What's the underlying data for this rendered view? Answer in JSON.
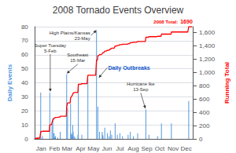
{
  "chart_data": {
    "type": "bar",
    "title": "2008 Tornado Events Overview",
    "categories": [
      null,
      null,
      null,
      null,
      null,
      null,
      null,
      null,
      null,
      null,
      null,
      null,
      null,
      null,
      null,
      "Jan",
      null,
      null,
      null,
      null,
      null,
      null,
      null,
      null,
      null,
      null,
      null,
      null,
      null,
      null,
      null,
      null,
      null,
      null,
      null,
      null,
      null,
      null,
      null,
      null,
      null,
      null,
      null,
      null,
      null,
      null,
      "Feb",
      null,
      null,
      null,
      null,
      null,
      null,
      null,
      null,
      null,
      null,
      null,
      null,
      null,
      null,
      null,
      null,
      null,
      null,
      null,
      null,
      null,
      null,
      null,
      null,
      null,
      null,
      null,
      null,
      "Mar",
      null,
      null,
      null,
      null,
      null,
      null,
      null,
      null,
      null,
      null,
      null,
      null,
      null,
      null,
      null,
      null,
      null,
      null,
      null,
      null,
      null,
      null,
      null,
      null,
      null,
      null,
      null,
      null,
      null,
      null,
      "Apr",
      null,
      null,
      null,
      null,
      null,
      null,
      null,
      null,
      null,
      null,
      null,
      null,
      null,
      null,
      null,
      null,
      null,
      null,
      null,
      null,
      null,
      null,
      null,
      null,
      null,
      null,
      null,
      null,
      null,
      "May",
      null,
      null,
      null,
      null,
      null,
      null,
      null,
      null,
      null,
      null,
      null,
      null,
      null,
      null,
      null,
      null,
      null,
      null,
      null,
      null,
      null,
      null,
      null,
      null,
      null,
      null,
      null,
      null,
      null,
      null,
      "Jun",
      null,
      null,
      null,
      null,
      null,
      null,
      null,
      null,
      null,
      null,
      null,
      null,
      null,
      null,
      null,
      null,
      null,
      null,
      null,
      null,
      null,
      null,
      null,
      null,
      null,
      null,
      null,
      null,
      null,
      "Jul",
      null,
      null,
      null,
      null,
      null,
      null,
      null,
      null,
      null,
      null,
      null,
      null,
      null,
      null,
      null,
      null,
      null,
      null,
      null,
      null,
      null,
      null,
      null,
      null,
      null,
      null,
      null,
      null,
      null,
      null,
      "Aug",
      null,
      null,
      null,
      null,
      null,
      null,
      null,
      null,
      null,
      null,
      null,
      null,
      null,
      null,
      null,
      null,
      null,
      null,
      null,
      null,
      null,
      null,
      null,
      null,
      null,
      null,
      null,
      null,
      null,
      null,
      "Sep",
      null,
      null,
      null,
      null,
      null,
      null,
      null,
      null,
      null,
      null,
      null,
      null,
      null,
      null,
      null,
      null,
      null,
      null,
      null,
      null,
      null,
      null,
      null,
      null,
      null,
      null,
      null,
      null,
      null,
      "Oct",
      null,
      null,
      null,
      null,
      null,
      null,
      null,
      null,
      null,
      null,
      null,
      null,
      null,
      null,
      null,
      null,
      null,
      null,
      null,
      null,
      null,
      null,
      null,
      null,
      null,
      null,
      null,
      null,
      null,
      null,
      "Nov",
      null,
      null,
      null,
      null,
      null,
      null,
      null,
      null,
      null,
      null,
      null,
      null,
      null,
      null,
      null,
      null,
      null,
      null,
      null,
      null,
      null,
      null,
      null,
      null,
      null,
      null,
      null,
      null,
      null,
      "Dec",
      null,
      null,
      null,
      null,
      null,
      null,
      null,
      null,
      null,
      null,
      null,
      null,
      null,
      null,
      null
    ],
    "series": [
      {
        "type": "bar",
        "color": "#5599dd",
        "values": [
          2,
          1,
          0,
          0,
          0,
          0,
          0,
          1,
          0,
          0,
          0,
          0,
          0,
          0,
          33,
          0,
          0,
          0,
          2,
          0,
          0,
          0,
          0,
          0,
          0,
          0,
          0,
          0,
          0,
          0,
          0,
          0,
          0,
          0,
          0,
          33,
          0,
          0,
          0,
          0,
          10,
          0,
          15,
          0,
          4,
          4,
          1,
          1,
          2,
          0,
          0,
          0,
          0,
          1,
          0,
          0,
          0,
          0,
          0,
          5,
          0,
          0,
          0,
          0,
          0,
          0,
          0,
          0,
          0,
          0,
          0,
          0,
          0,
          0,
          46,
          0,
          22,
          0,
          0,
          0,
          0,
          0,
          0,
          25,
          3,
          4,
          3,
          0,
          10,
          5,
          0,
          2,
          0,
          1,
          0,
          0,
          0,
          0,
          0,
          0,
          3,
          39,
          0,
          0,
          0,
          0,
          0,
          0,
          0,
          3,
          0,
          0,
          0,
          0,
          0,
          0,
          0,
          0,
          0,
          0,
          0,
          0,
          0,
          43,
          0,
          0,
          0,
          0,
          0,
          0,
          0,
          0,
          0,
          0,
          0,
          0,
          0,
          0,
          0,
          0,
          0,
          0,
          0,
          77,
          0,
          0,
          23,
          0,
          0,
          0,
          5,
          0,
          0,
          0,
          0,
          0,
          5,
          3,
          2,
          0,
          0,
          0,
          8,
          0,
          0,
          0,
          0,
          0,
          4,
          0,
          0,
          0,
          2,
          0,
          0,
          6,
          0,
          0,
          3,
          0,
          0,
          0,
          0,
          0,
          0,
          0,
          11,
          0,
          0,
          0,
          0,
          3,
          0,
          0,
          0,
          0,
          0,
          4,
          0,
          0,
          0,
          0,
          0,
          2,
          0,
          0,
          0,
          0,
          0,
          0,
          0,
          0,
          0,
          0,
          0,
          0,
          3,
          0,
          0,
          0,
          0,
          5,
          0,
          0,
          0,
          0,
          0,
          0,
          2,
          0,
          0,
          0,
          0,
          0,
          0,
          0,
          0,
          0,
          4,
          0,
          0,
          0,
          0,
          0,
          0,
          0,
          0,
          0,
          0,
          0,
          0,
          0,
          0,
          0,
          0,
          0,
          0,
          21,
          0,
          0,
          0,
          0,
          0,
          0,
          3,
          0,
          0,
          0,
          0,
          0,
          0,
          0,
          0,
          0,
          0,
          0,
          0,
          0,
          0,
          0,
          0,
          0,
          0,
          0,
          2,
          0,
          0,
          0,
          0,
          0,
          0,
          0,
          0,
          11,
          0,
          0,
          0,
          0,
          0,
          0,
          0,
          0,
          0,
          0,
          0,
          0,
          0,
          0,
          0,
          0,
          0,
          0,
          0,
          0,
          0,
          0,
          11,
          0,
          0,
          0,
          0,
          0,
          0,
          0,
          0,
          0,
          0,
          0,
          0,
          0,
          0,
          0,
          0,
          0,
          0,
          0,
          0,
          0,
          0,
          0,
          0,
          0,
          0,
          0,
          0,
          0,
          0,
          0,
          0,
          0,
          0,
          0,
          0,
          0,
          0,
          0,
          27,
          0,
          0,
          0,
          0,
          0,
          0,
          0,
          0,
          0
        ]
      },
      {
        "type": "line",
        "color": "#ff0000",
        "axis": "y2",
        "values": [
          5.92,
          8.88,
          8.88,
          8.88,
          8.88,
          8.88,
          8.88,
          11.84,
          11.84,
          11.84,
          11.84,
          11.84,
          11.84,
          11.84,
          109.51,
          109.51,
          109.51,
          109.51,
          115.43,
          115.43,
          115.43,
          115.43,
          115.43,
          115.43,
          115.43,
          115.43,
          115.43,
          115.43,
          115.43,
          115.43,
          115.43,
          115.43,
          115.43,
          115.43,
          115.43,
          213.1,
          213.1,
          213.1,
          213.1,
          213.1,
          242.7,
          242.7,
          287.09,
          287.09,
          298.93,
          310.77,
          313.73,
          316.69,
          322.61,
          322.61,
          322.61,
          322.61,
          322.61,
          325.57,
          325.57,
          325.57,
          325.57,
          325.57,
          325.57,
          340.37,
          340.37,
          340.37,
          340.37,
          340.37,
          340.37,
          340.37,
          340.37,
          340.37,
          340.37,
          340.37,
          340.37,
          340.37,
          340.37,
          340.37,
          476.51,
          476.51,
          541.63,
          541.63,
          541.63,
          541.63,
          541.63,
          541.63,
          541.63,
          615.62,
          624.5,
          636.34,
          645.22,
          645.22,
          674.82,
          689.61,
          689.61,
          695.53,
          695.53,
          698.49,
          698.49,
          698.49,
          698.49,
          698.49,
          698.49,
          698.49,
          707.37,
          822.8,
          822.8,
          822.8,
          822.8,
          822.8,
          822.8,
          822.8,
          822.8,
          831.68,
          831.68,
          831.68,
          831.68,
          831.68,
          831.68,
          831.68,
          831.68,
          831.68,
          831.68,
          831.68,
          831.68,
          831.68,
          831.68,
          958.95,
          958.95,
          958.95,
          958.95,
          958.95,
          958.95,
          958.95,
          958.95,
          958.95,
          958.95,
          958.95,
          958.95,
          958.95,
          958.95,
          958.95,
          958.95,
          958.95,
          958.95,
          958.95,
          958.95,
          1186.85,
          1186.85,
          1186.85,
          1254.92,
          1254.92,
          1254.92,
          1254.92,
          1269.72,
          1269.72,
          1269.72,
          1269.72,
          1269.72,
          1269.72,
          1284.52,
          1293.4,
          1299.32,
          1299.32,
          1299.32,
          1299.32,
          1322.99,
          1322.99,
          1322.99,
          1322.99,
          1322.99,
          1322.99,
          1334.83,
          1334.83,
          1334.83,
          1334.83,
          1340.75,
          1340.75,
          1340.75,
          1358.51,
          1358.51,
          1358.51,
          1367.39,
          1367.39,
          1367.39,
          1367.39,
          1367.39,
          1367.39,
          1367.39,
          1367.39,
          1399.95,
          1399.95,
          1399.95,
          1399.95,
          1399.95,
          1408.83,
          1408.83,
          1408.83,
          1408.83,
          1408.83,
          1408.83,
          1420.67,
          1420.67,
          1420.67,
          1420.67,
          1420.67,
          1420.67,
          1426.58,
          1426.58,
          1426.58,
          1426.58,
          1426.58,
          1426.58,
          1426.58,
          1426.58,
          1426.58,
          1426.58,
          1426.58,
          1426.58,
          1426.58,
          1435.46,
          1435.46,
          1435.46,
          1435.46,
          1435.46,
          1450.26,
          1450.26,
          1450.26,
          1450.26,
          1450.26,
          1450.26,
          1450.26,
          1456.18,
          1456.18,
          1456.18,
          1456.18,
          1456.18,
          1456.18,
          1456.18,
          1456.18,
          1456.18,
          1456.18,
          1468.02,
          1468.02,
          1468.02,
          1468.02,
          1468.02,
          1468.02,
          1468.02,
          1468.02,
          1468.02,
          1468.02,
          1468.02,
          1468.02,
          1468.02,
          1468.02,
          1468.02,
          1468.02,
          1468.02,
          1468.02,
          1468.02,
          1530.18,
          1530.18,
          1530.18,
          1530.18,
          1530.18,
          1530.18,
          1530.18,
          1539.05,
          1539.05,
          1539.05,
          1539.05,
          1539.05,
          1539.05,
          1539.05,
          1539.05,
          1539.05,
          1539.05,
          1539.05,
          1539.05,
          1539.05,
          1539.05,
          1539.05,
          1539.05,
          1539.05,
          1539.05,
          1539.05,
          1539.05,
          1544.97,
          1544.97,
          1544.97,
          1544.97,
          1544.97,
          1544.97,
          1544.97,
          1544.97,
          1544.97,
          1577.53,
          1577.53,
          1577.53,
          1577.53,
          1577.53,
          1577.53,
          1577.53,
          1577.53,
          1577.53,
          1577.53,
          1577.53,
          1577.53,
          1577.53,
          1577.53,
          1577.53,
          1577.53,
          1577.53,
          1577.53,
          1577.53,
          1577.53,
          1577.53,
          1577.53,
          1577.53,
          1610.09,
          1610.09,
          1610.09,
          1610.09,
          1610.09,
          1610.09,
          1610.09,
          1610.09,
          1610.09,
          1610.09,
          1610.09,
          1610.09,
          1610.09,
          1610.09,
          1610.09,
          1610.09,
          1610.09,
          1610.09,
          1610.09,
          1610.09,
          1610.09,
          1610.09,
          1610.09,
          1610.09,
          1610.09,
          1610.09,
          1610.09,
          1610.09,
          1610.09,
          1610.09,
          1610.09,
          1610.09,
          1610.09,
          1610.09,
          1610.09,
          1610.09,
          1610.09,
          1610.09,
          1610.09,
          1610.09,
          1690,
          1690,
          1690,
          1690,
          1690,
          1690,
          1690,
          1690,
          1690,
          1690
        ]
      }
    ],
    "ylabel": "Daily Events",
    "y2label": "Running Total",
    "ylim": [
      0,
      80
    ],
    "yticks": [
      0,
      10,
      20,
      30,
      40,
      50,
      60,
      70,
      80
    ],
    "y2lim": [
      0,
      1690
    ],
    "y2ticks": [
      0,
      200,
      400,
      600,
      800,
      1000,
      1200,
      1400,
      1600
    ],
    "grid": true,
    "annotations": [
      {
        "text": "Super Tuesday\n5-Feb",
        "x": 36,
        "y": 33
      },
      {
        "text": "Southeast\n15-Mar",
        "x": 74,
        "y": 46
      },
      {
        "text": "High Plains/Kansas\n23-May",
        "x": 143,
        "y": 77
      },
      {
        "text": "Hurricane Ike\n13-Sep",
        "x": 256,
        "y": 21
      },
      {
        "text": "Daily Outbreaks",
        "x": 148,
        "y": 43,
        "color": "#1155cc"
      },
      {
        "text": "2008 Total:",
        "x": 365,
        "y": 1690,
        "axis": "y2",
        "color": "#ff0000"
      },
      {
        "text": "1690",
        "x": 365,
        "y": 1690,
        "axis": "y2",
        "color": "#ff0000"
      }
    ]
  }
}
